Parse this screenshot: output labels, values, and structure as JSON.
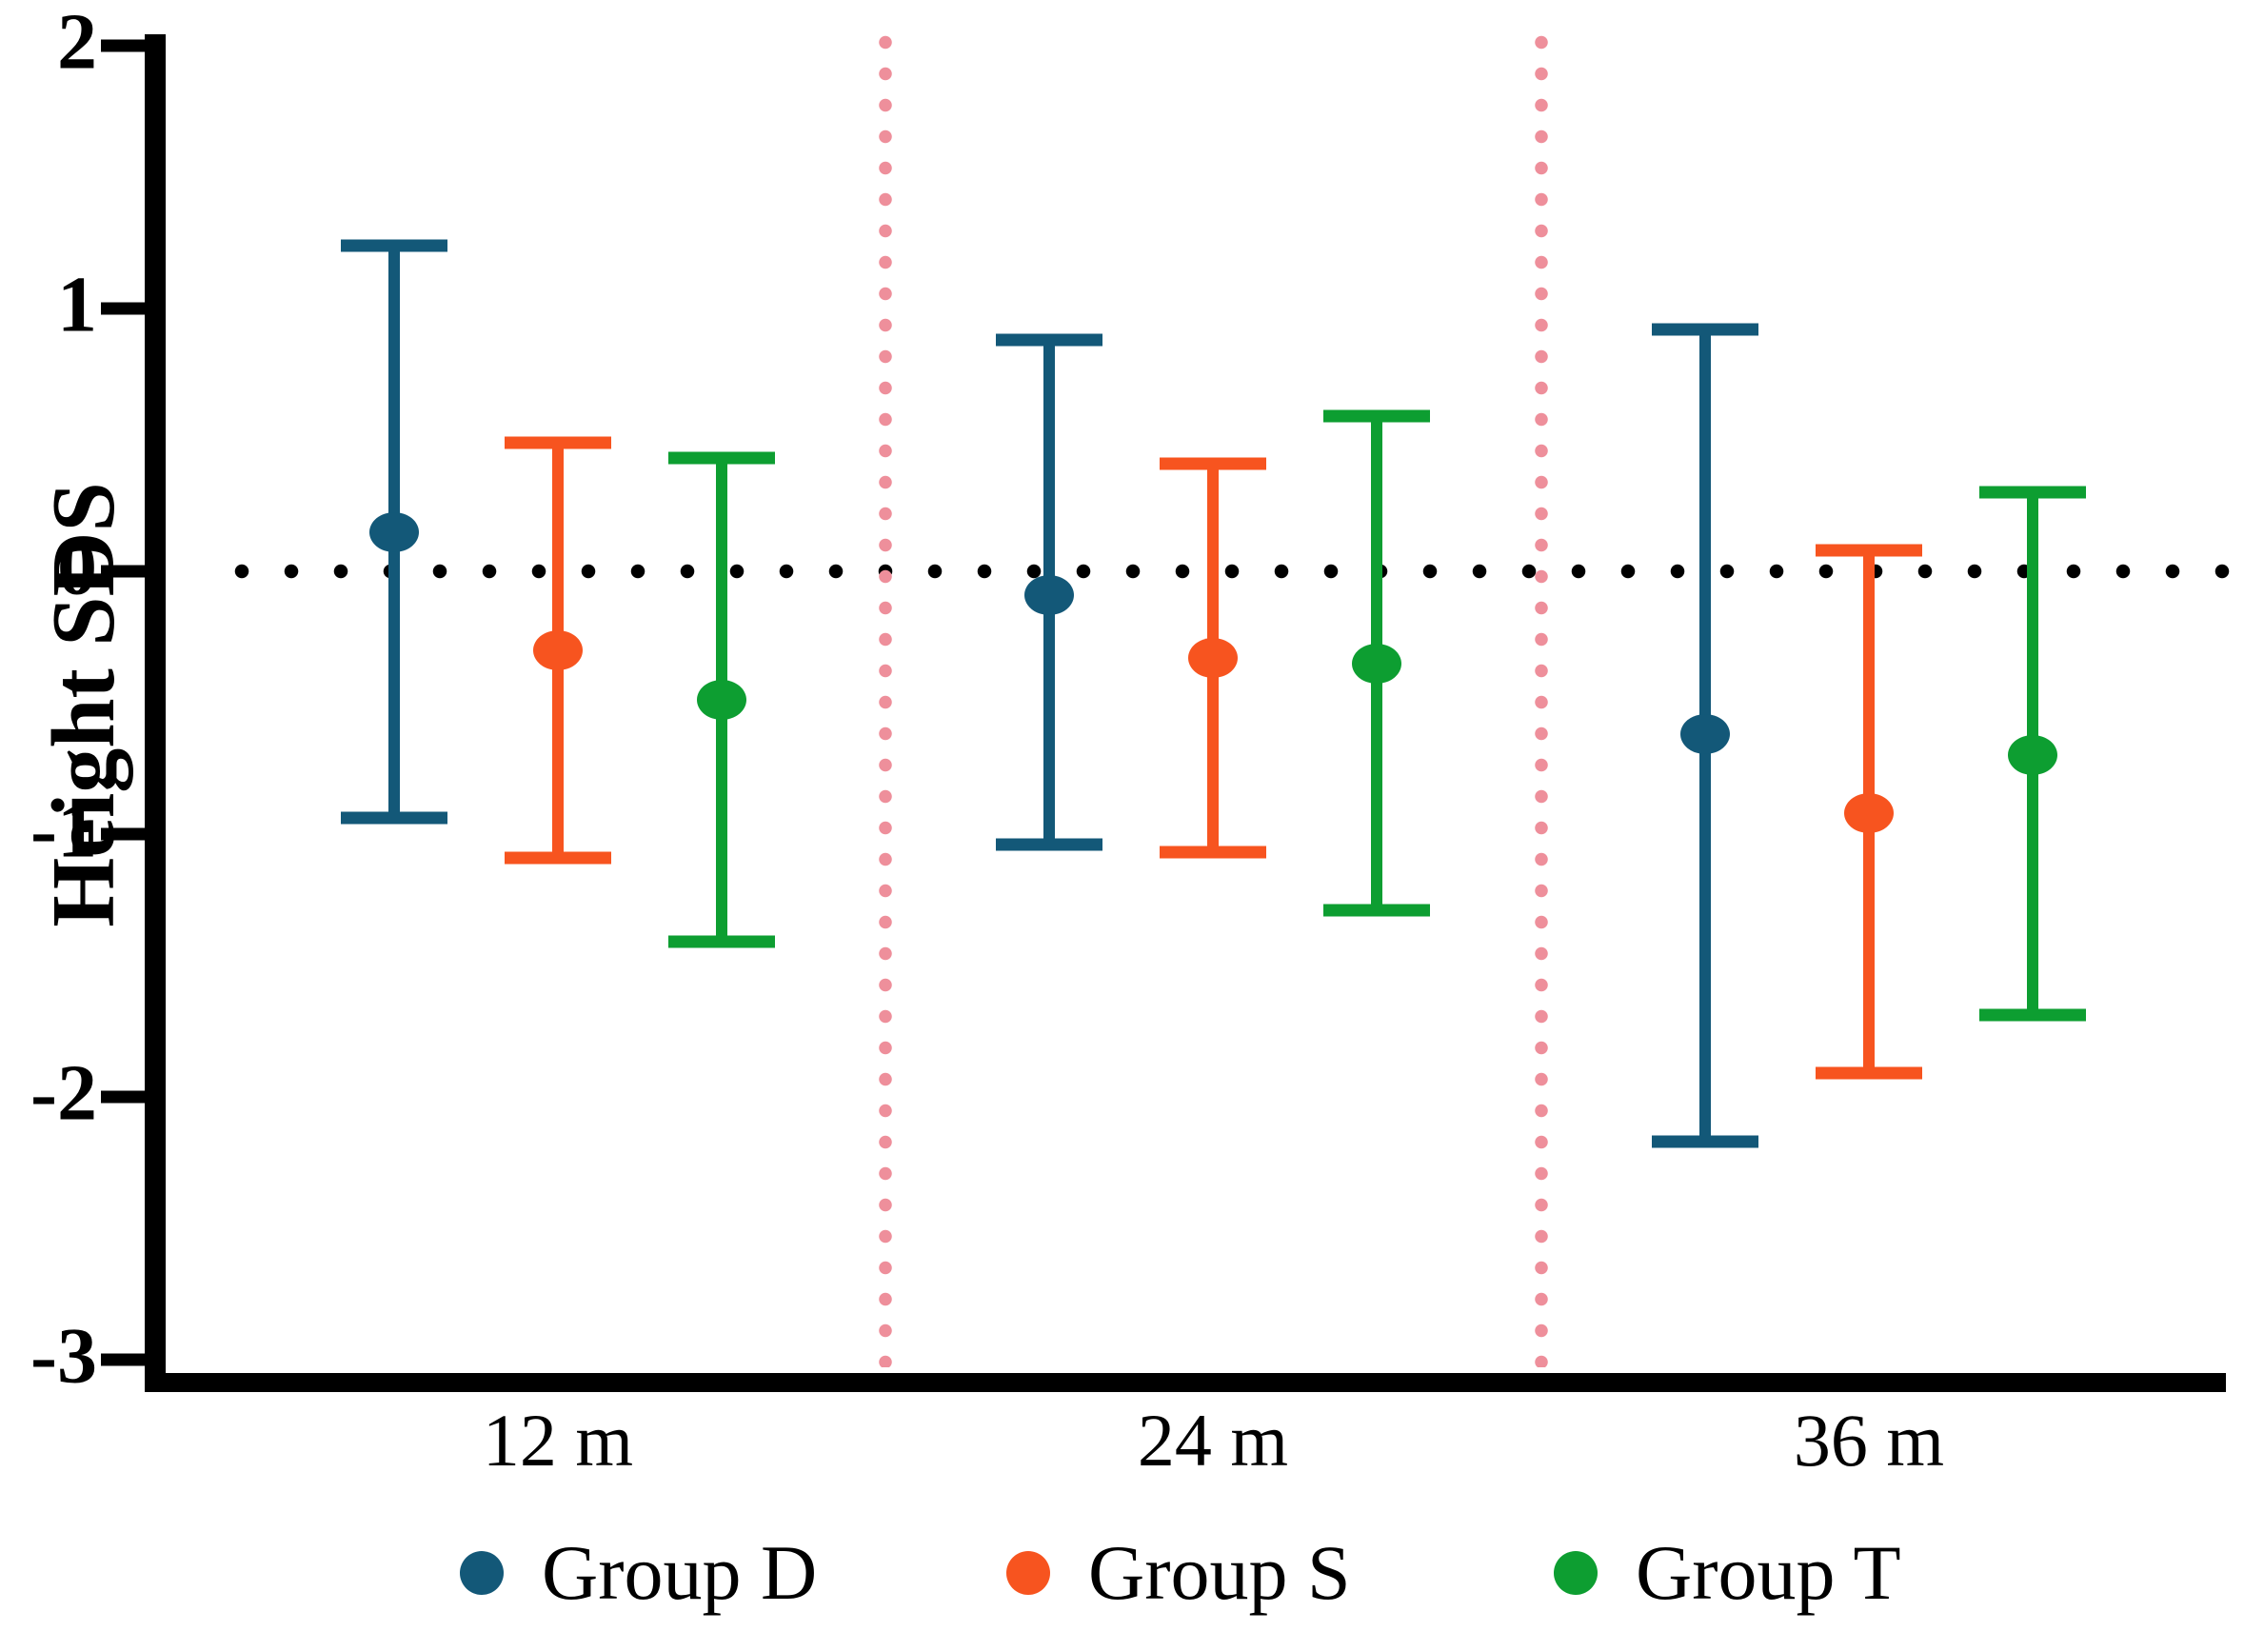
{
  "figure": {
    "background": "#ffffff",
    "axis_color": "#000000",
    "zero_line_color": "#000000",
    "separator_color": "#EE8F9B",
    "y_axis_title": "Height SDS"
  },
  "chart_data": {
    "type": "scatter",
    "subtype": "point-with-error-bars",
    "title": "",
    "xlabel": "",
    "ylabel": "Height SDS",
    "categories": [
      "12 m",
      "24 m",
      "36 m"
    ],
    "ylim": [
      -3,
      2
    ],
    "yticks": [
      "2",
      "1",
      "0",
      "-1",
      "-2",
      "-3"
    ],
    "ytick_values": [
      2,
      1,
      0,
      -1,
      -2,
      -3
    ],
    "reference_line_y": 0,
    "grid": false,
    "legend_position": "bottom",
    "vertical_separators_between_categories": true,
    "series": [
      {
        "name": "Group D",
        "color": "#135878",
        "means": [
          0.15,
          -0.09,
          -0.62
        ],
        "ci_low": [
          -0.94,
          -1.04,
          -2.17
        ],
        "ci_high": [
          1.24,
          0.88,
          0.92
        ]
      },
      {
        "name": "Group S",
        "color": "#F7541F",
        "means": [
          -0.3,
          -0.33,
          -0.92
        ],
        "ci_low": [
          -1.09,
          -1.07,
          -1.91
        ],
        "ci_high": [
          0.49,
          0.41,
          0.08
        ]
      },
      {
        "name": "Group T",
        "color": "#0D9E31",
        "means": [
          -0.49,
          -0.35,
          -0.7
        ],
        "ci_low": [
          -1.41,
          -1.29,
          -1.69
        ],
        "ci_high": [
          0.43,
          0.59,
          0.3
        ]
      }
    ]
  }
}
